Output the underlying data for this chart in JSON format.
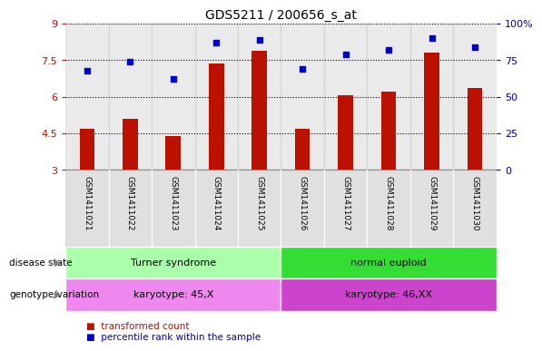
{
  "title": "GDS5211 / 200656_s_at",
  "samples": [
    "GSM1411021",
    "GSM1411022",
    "GSM1411023",
    "GSM1411024",
    "GSM1411025",
    "GSM1411026",
    "GSM1411027",
    "GSM1411028",
    "GSM1411029",
    "GSM1411030"
  ],
  "transformed_count": [
    4.7,
    5.1,
    4.4,
    7.35,
    7.9,
    4.7,
    6.05,
    6.2,
    7.8,
    6.35
  ],
  "percentile_rank": [
    68,
    74,
    62,
    87,
    89,
    69,
    79,
    82,
    90,
    84
  ],
  "ylim_left": [
    3,
    9
  ],
  "ylim_right": [
    0,
    100
  ],
  "yticks_left": [
    3,
    4.5,
    6,
    7.5,
    9
  ],
  "ytick_labels_left": [
    "3",
    "4.5",
    "6",
    "7.5",
    "9"
  ],
  "yticks_right": [
    0,
    25,
    50,
    75,
    100
  ],
  "ytick_labels_right": [
    "0",
    "25",
    "50",
    "75",
    "100%"
  ],
  "bar_color": "#bb1100",
  "dot_color": "#0000cc",
  "disease_state_groups": [
    {
      "label": "Turner syndrome",
      "start": 0,
      "end": 5,
      "color": "#aaffaa"
    },
    {
      "label": "normal euploid",
      "start": 5,
      "end": 10,
      "color": "#33dd33"
    }
  ],
  "genotype_groups": [
    {
      "label": "karyotype: 45,X",
      "start": 0,
      "end": 5,
      "color": "#ee88ee"
    },
    {
      "label": "karyotype: 46,XX",
      "start": 5,
      "end": 10,
      "color": "#cc44cc"
    }
  ],
  "col_bg_color": "#cccccc",
  "col_bg_alpha": 0.4,
  "title_fontsize": 10,
  "axis_fontsize": 8,
  "bar_width": 0.35
}
